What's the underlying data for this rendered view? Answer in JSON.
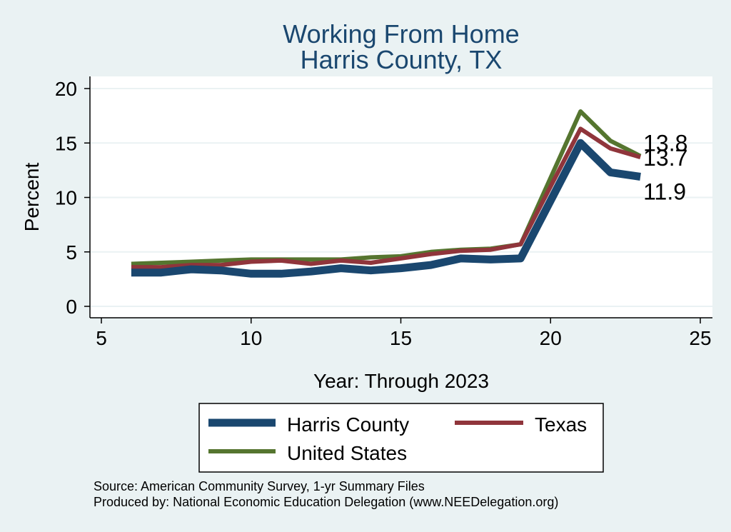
{
  "chart_data": {
    "type": "line",
    "title": [
      "Working From Home",
      "Harris County, TX"
    ],
    "xlabel": "Year: Through 2023",
    "ylabel": "Percent",
    "xlim": [
      5,
      25
    ],
    "ylim": [
      0,
      20
    ],
    "xticks": [
      "5",
      "10",
      "15",
      "20",
      "25"
    ],
    "yticks": [
      "0",
      "5",
      "10",
      "15",
      "20"
    ],
    "grid": "horizontal",
    "x": [
      6,
      7,
      8,
      9,
      10,
      11,
      12,
      13,
      14,
      15,
      16,
      17,
      18,
      19,
      21,
      22,
      23
    ],
    "series": [
      {
        "name": "Harris County",
        "color": "#1a476f",
        "values": [
          3.1,
          3.1,
          3.4,
          3.3,
          3.0,
          3.0,
          3.2,
          3.5,
          3.3,
          3.5,
          3.8,
          4.4,
          4.3,
          4.4,
          15.0,
          12.3,
          11.9
        ]
      },
      {
        "name": "Texas",
        "color": "#90353b",
        "values": [
          3.6,
          3.6,
          3.8,
          3.8,
          4.1,
          4.2,
          3.9,
          4.2,
          4.0,
          4.4,
          4.8,
          5.1,
          5.2,
          5.7,
          16.3,
          14.5,
          13.7
        ]
      },
      {
        "name": "United States",
        "color": "#55752f",
        "values": [
          3.9,
          4.0,
          4.1,
          4.2,
          4.3,
          4.3,
          4.3,
          4.3,
          4.5,
          4.6,
          5.0,
          5.2,
          5.3,
          5.7,
          17.9,
          15.2,
          13.8
        ]
      }
    ],
    "end_labels": [
      "11.9",
      "13.7",
      "13.8"
    ],
    "legend": [
      "Harris County",
      "Texas",
      "United States"
    ],
    "legend_position": "bottom",
    "notes": [
      "Source: American Community Survey, 1-yr Summary Files",
      "Produced by: National Economic Education Delegation (www.NEEDelegation.org)"
    ]
  }
}
